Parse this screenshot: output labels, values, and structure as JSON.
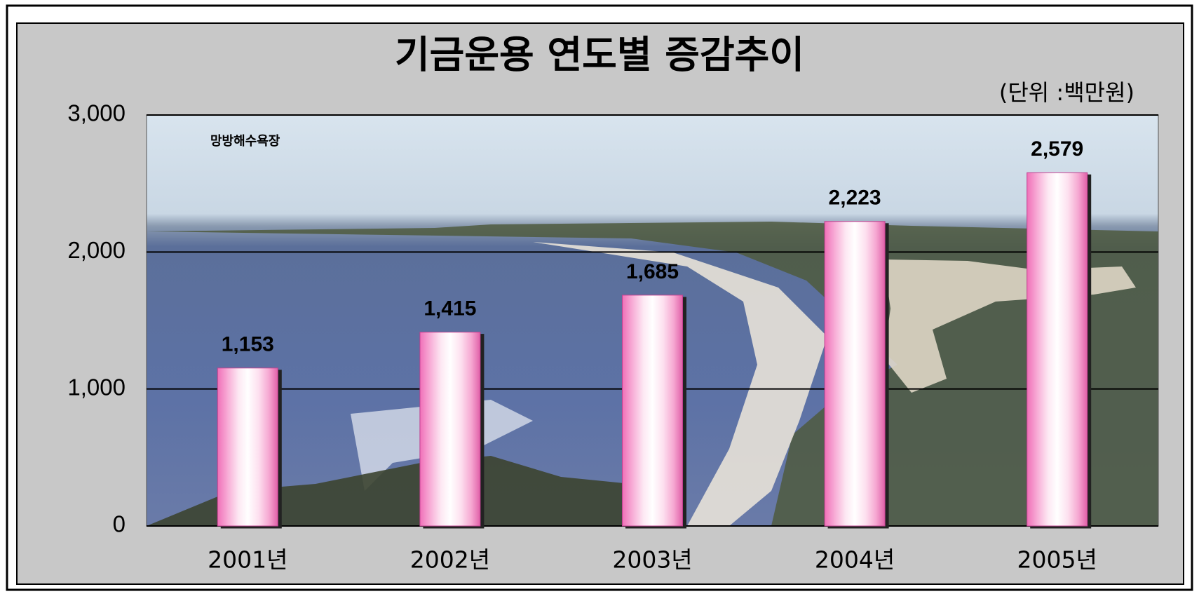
{
  "chart_data": {
    "type": "bar",
    "title": "기금운용 연도별 증감추이",
    "subtitle": "(단위 :백만원)",
    "annotation": "망방해수욕장",
    "categories": [
      "2001년",
      "2002년",
      "2003년",
      "2004년",
      "2005년"
    ],
    "values": [
      1153,
      1415,
      1685,
      2223,
      2579
    ],
    "value_labels": [
      "1,153",
      "1,415",
      "1,685",
      "2,223",
      "2,579"
    ],
    "ylim": [
      0,
      3000
    ],
    "yticks": [
      0,
      {
        "value": 1000,
        "label": "1,000"
      },
      {
        "value": 2000,
        "label": "2,000"
      },
      {
        "value": 3000,
        "label": "3,000"
      }
    ],
    "grid": true
  }
}
